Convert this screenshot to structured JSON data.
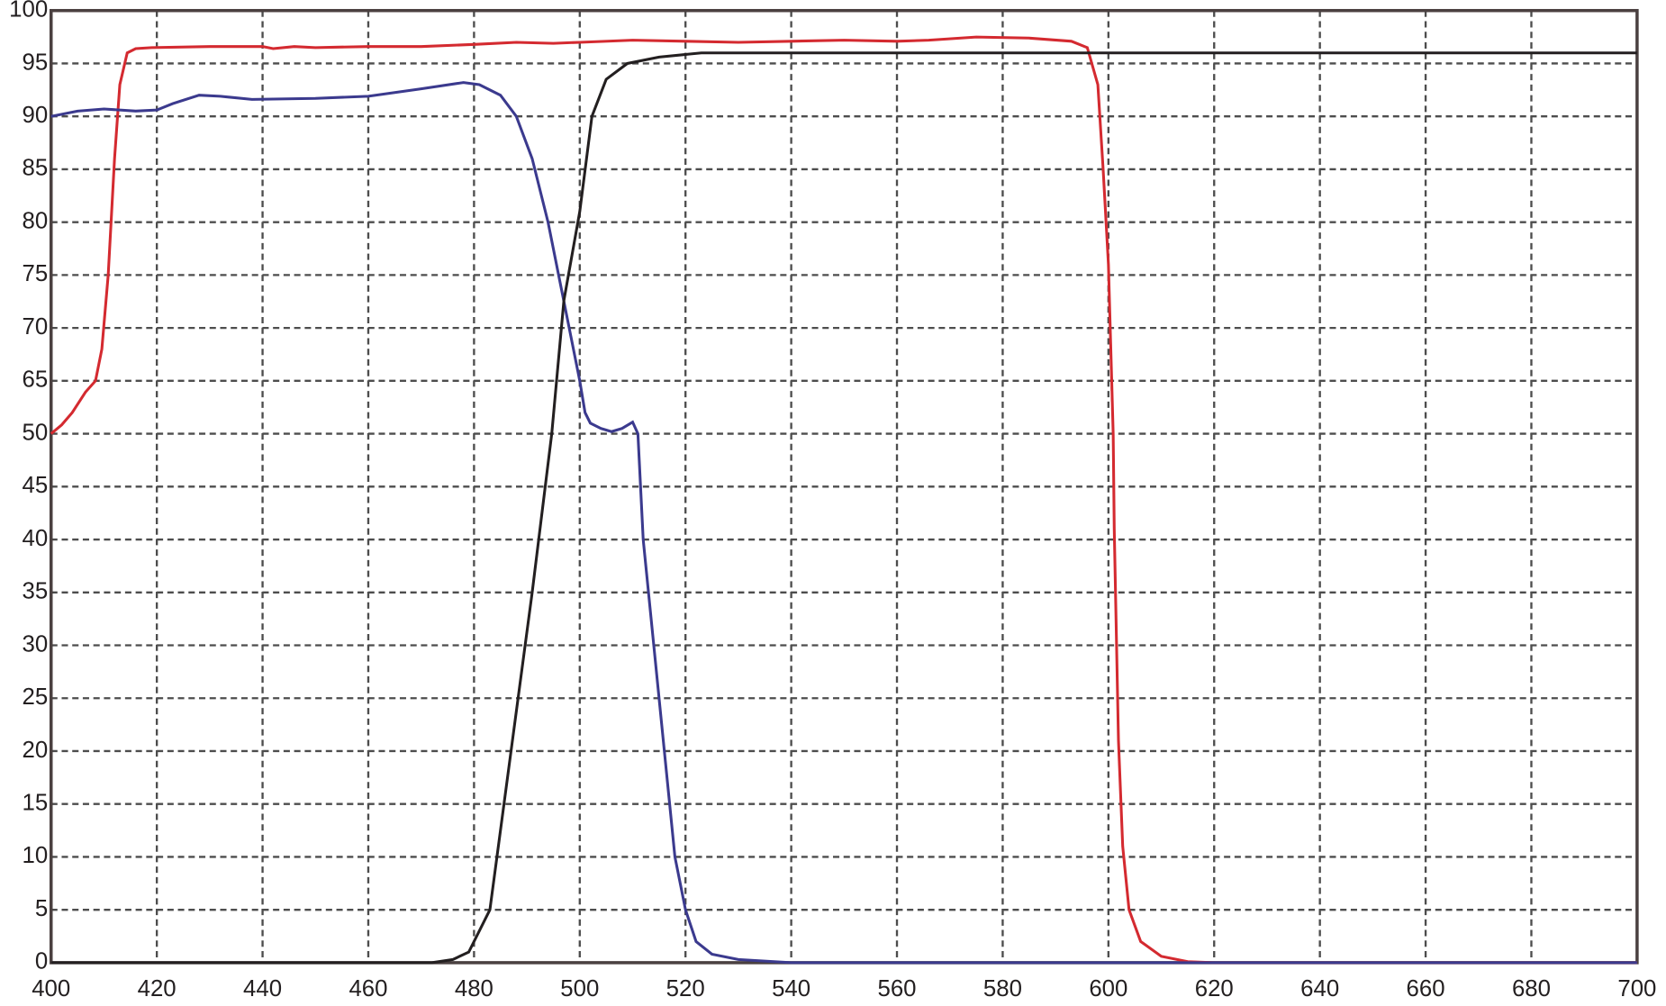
{
  "chart_data": {
    "type": "line",
    "xlim": [
      400,
      700
    ],
    "xticks": [
      400,
      420,
      440,
      460,
      480,
      500,
      520,
      540,
      560,
      580,
      600,
      620,
      640,
      660,
      680,
      700
    ],
    "ylim": [
      0,
      100
    ],
    "yticks": [
      0,
      5,
      10,
      15,
      20,
      25,
      30,
      35,
      40,
      45,
      50,
      65,
      70,
      75,
      80,
      85,
      90,
      95,
      100
    ],
    "grid": true,
    "series": [
      {
        "color": "#d42a30",
        "x": [
          400,
          402,
          404,
          406.5,
          408.4,
          409.6,
          410.8,
          412,
          413,
          414.4,
          416,
          419,
          430,
          440,
          442,
          446,
          450,
          460,
          470,
          480,
          488,
          495,
          500,
          510,
          520,
          530,
          540,
          550,
          560,
          566,
          575,
          585,
          593,
          596,
          598,
          599,
          600,
          600.9,
          601.1,
          601.9,
          602.7,
          603.9,
          606.1,
          610,
          615,
          620,
          700
        ],
        "values": [
          50,
          52.5,
          56,
          61.8,
          65,
          68,
          75,
          86,
          93,
          96,
          96.4,
          96.5,
          96.6,
          96.6,
          96.4,
          96.6,
          96.5,
          96.6,
          96.6,
          96.8,
          97,
          96.9,
          97,
          97.2,
          97.1,
          97,
          97.1,
          97.2,
          97.1,
          97.2,
          97.5,
          97.4,
          97.1,
          96.5,
          93,
          85,
          76,
          50,
          41,
          21,
          11,
          5,
          2,
          0.6,
          0.1,
          0,
          0
        ]
      },
      {
        "color": "#3b3a8e",
        "x": [
          400,
          405,
          410,
          416,
          420,
          423,
          428,
          432,
          438,
          450,
          460,
          470,
          478,
          481,
          485,
          488,
          491,
          494,
          496,
          498,
          500,
          501,
          502,
          504,
          506,
          508,
          510,
          511,
          512,
          514,
          516,
          518,
          520,
          522,
          525,
          530,
          540,
          700
        ],
        "values": [
          90,
          90.5,
          90.7,
          90.5,
          90.6,
          91.2,
          92,
          91.9,
          91.6,
          91.7,
          91.9,
          92.6,
          93.2,
          93,
          92,
          90,
          86,
          80,
          75,
          70,
          65,
          56,
          53,
          51.5,
          50.6,
          51.5,
          53.3,
          50,
          40,
          30,
          20,
          10,
          5,
          2,
          0.8,
          0.3,
          0,
          0
        ]
      },
      {
        "color": "#231f20",
        "x": [
          400,
          472,
          476,
          479,
          483,
          487,
          491,
          494.7,
          497,
          500,
          502.3,
          505,
          509,
          515,
          523,
          530,
          700
        ],
        "values": [
          0,
          0,
          0.3,
          1,
          5,
          20,
          35,
          50,
          72.6,
          81,
          90,
          93.5,
          95,
          95.6,
          96,
          96,
          96
        ]
      }
    ]
  }
}
